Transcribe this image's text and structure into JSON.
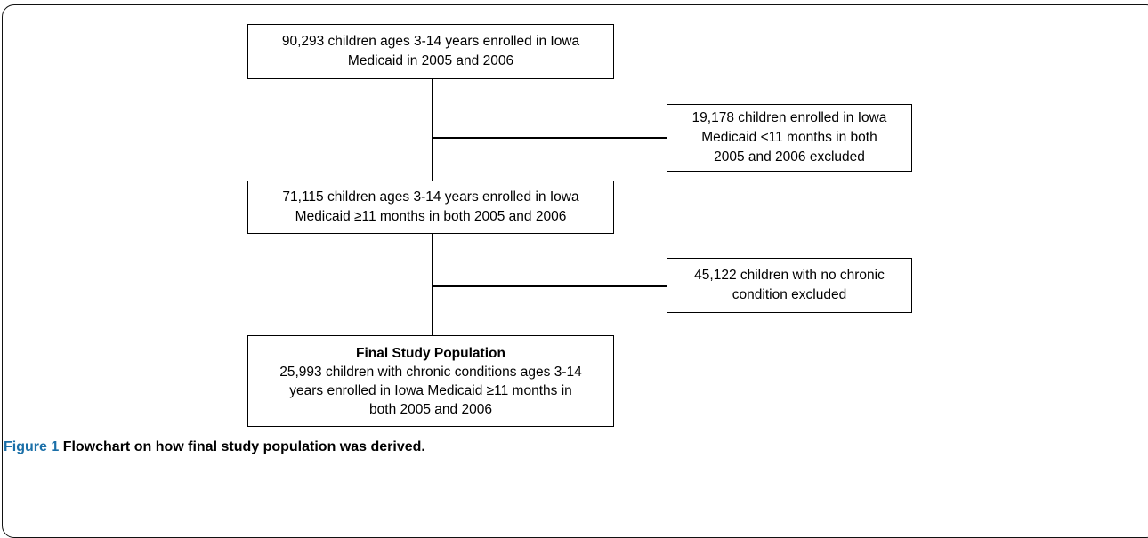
{
  "flowchart": {
    "box1": {
      "lines": [
        "90,293 children ages 3-14 years enrolled in Iowa",
        "Medicaid in 2005 and 2006"
      ]
    },
    "excluded1": {
      "lines": [
        "19,178 children enrolled in Iowa",
        "Medicaid <11 months in both",
        "2005 and 2006 excluded"
      ]
    },
    "box2": {
      "lines": [
        "71,115 children ages 3-14 years enrolled in Iowa",
        "Medicaid ≥11 months in both 2005 and 2006"
      ]
    },
    "excluded2": {
      "lines": [
        "45,122 children with no chronic",
        "condition excluded"
      ]
    },
    "box3": {
      "heading": "Final Study Population",
      "lines": [
        "25,993 children with chronic conditions ages 3-14",
        "years enrolled in Iowa Medicaid ≥11 months in",
        "both 2005 and 2006"
      ]
    }
  },
  "caption": {
    "label": "Figure 1",
    "text": "Flowchart on how final study population was derived."
  }
}
